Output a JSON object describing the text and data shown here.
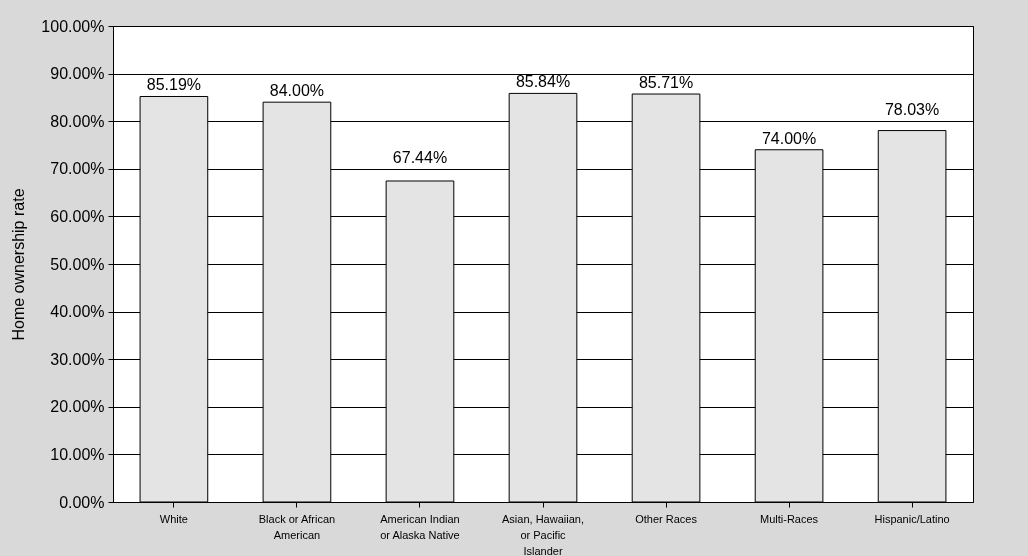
{
  "chart_data": {
    "type": "bar",
    "ylabel": "Home ownership rate",
    "categories": [
      "White",
      "Black or African American",
      "American Indian or Alaska Native",
      "Asian, Hawaiian, or Pacific Islander",
      "Other Races",
      "Multi-Races",
      "Hispanic/Latino"
    ],
    "values": [
      85.19,
      84.0,
      67.44,
      85.84,
      85.71,
      74.0,
      78.03
    ],
    "value_labels": [
      "85.19%",
      "84.00%",
      "67.44%",
      "85.84%",
      "85.71%",
      "74.00%",
      "78.03%"
    ],
    "color": "#e4e4e4",
    "ylim": [
      0,
      100
    ],
    "yticks": [
      {
        "value": 0,
        "label": "0.00%"
      },
      {
        "value": 10,
        "label": "10.00%"
      },
      {
        "value": 20,
        "label": "20.00%"
      },
      {
        "value": 30,
        "label": "30.00%"
      },
      {
        "value": 40,
        "label": "40.00%"
      },
      {
        "value": 50,
        "label": "50.00%"
      },
      {
        "value": 60,
        "label": "60.00%"
      },
      {
        "value": 70,
        "label": "70.00%"
      },
      {
        "value": 80,
        "label": "80.00%"
      },
      {
        "value": 90,
        "label": "90.00%"
      },
      {
        "value": 100,
        "label": "100.00%"
      }
    ],
    "grid": "y"
  }
}
